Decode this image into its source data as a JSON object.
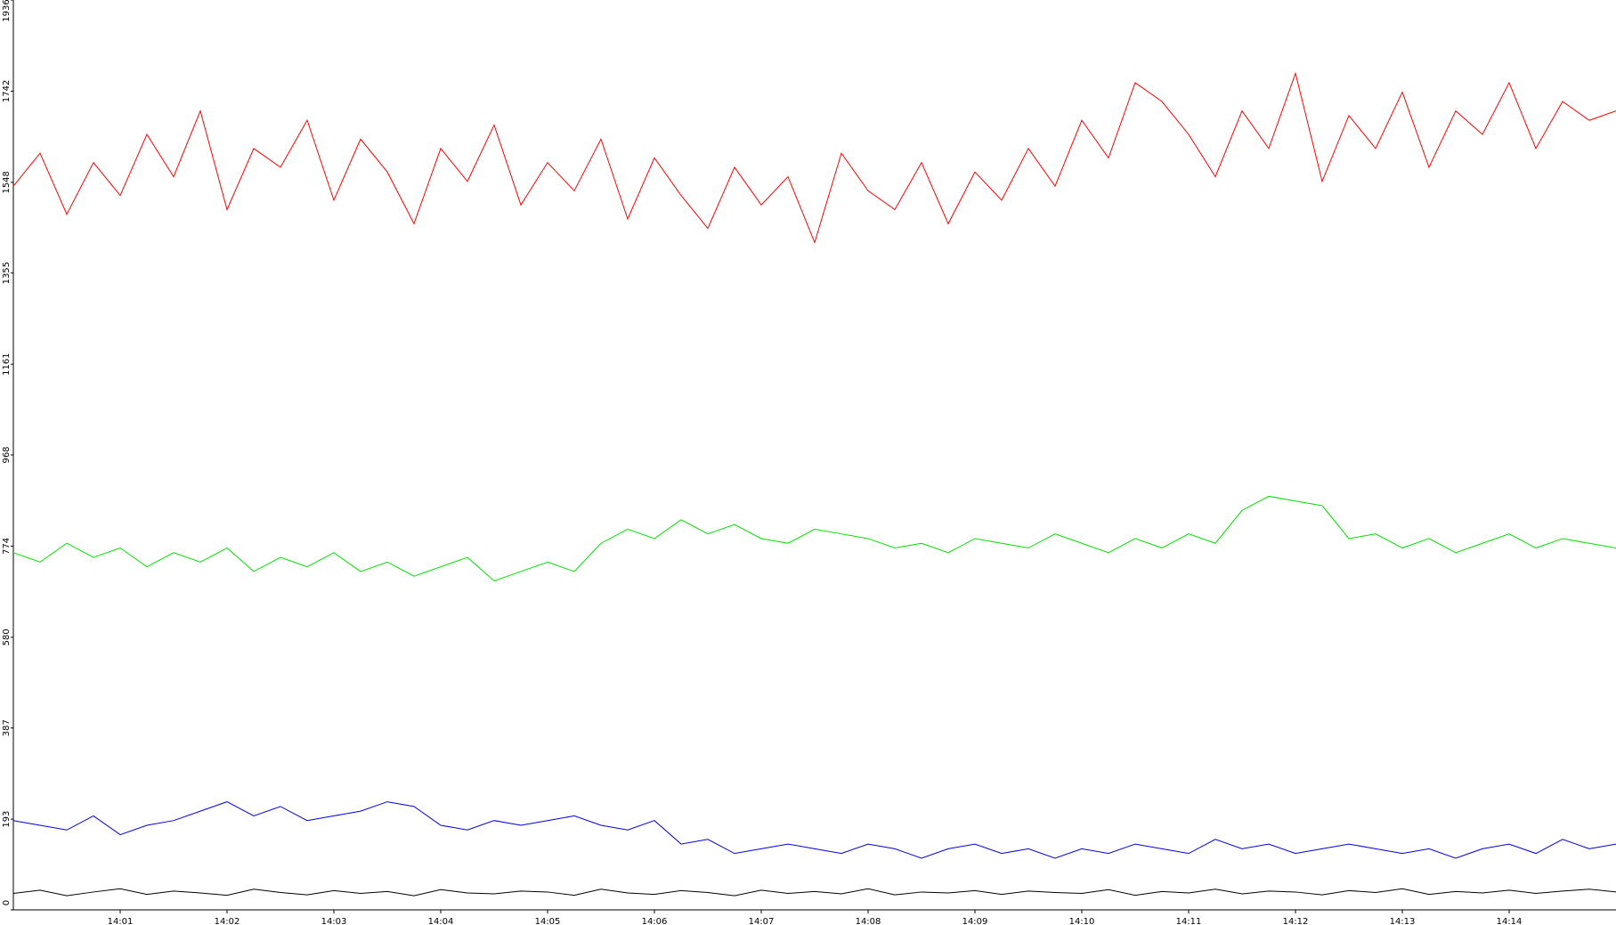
{
  "chart_data": {
    "type": "line",
    "x": [
      840,
      840.25,
      840.5,
      840.75,
      841,
      841.25,
      841.5,
      841.75,
      842,
      842.25,
      842.5,
      842.75,
      843,
      843.25,
      843.5,
      843.75,
      844,
      844.25,
      844.5,
      844.75,
      845,
      845.25,
      845.5,
      845.75,
      846,
      846.25,
      846.5,
      846.75,
      847,
      847.25,
      847.5,
      847.75,
      848,
      848.25,
      848.5,
      848.75,
      849,
      849.25,
      849.5,
      849.75,
      850,
      850.25,
      850.5,
      850.75,
      851,
      851.25,
      851.5,
      851.75,
      852,
      852.25,
      852.5,
      852.75,
      853,
      853.25,
      853.5,
      853.75,
      854,
      854.25,
      854.5,
      854.75,
      855
    ],
    "series": [
      {
        "color": "#ff0000",
        "values": [
          1540,
          1610,
          1480,
          1590,
          1520,
          1650,
          1560,
          1700,
          1490,
          1620,
          1580,
          1680,
          1510,
          1640,
          1570,
          1460,
          1620,
          1550,
          1670,
          1500,
          1590,
          1530,
          1640,
          1470,
          1600,
          1520,
          1450,
          1580,
          1500,
          1560,
          1420,
          1610,
          1530,
          1490,
          1590,
          1460,
          1570,
          1510,
          1620,
          1540,
          1680,
          1600,
          1760,
          1720,
          1650,
          1560,
          1700,
          1620,
          1780,
          1550,
          1690,
          1620,
          1740,
          1580,
          1700,
          1650,
          1760,
          1620,
          1720,
          1680,
          1700
        ]
      },
      {
        "color": "#00e000",
        "values": [
          760,
          740,
          780,
          750,
          770,
          730,
          760,
          740,
          770,
          720,
          750,
          730,
          760,
          720,
          740,
          710,
          730,
          750,
          700,
          720,
          740,
          720,
          780,
          810,
          790,
          830,
          800,
          820,
          790,
          780,
          810,
          800,
          790,
          770,
          780,
          760,
          790,
          780,
          770,
          800,
          780,
          760,
          790,
          770,
          800,
          780,
          850,
          880,
          870,
          860,
          790,
          800,
          770,
          790,
          760,
          780,
          800,
          770,
          790,
          780,
          770
        ]
      },
      {
        "color": "#0000dd",
        "values": [
          190,
          180,
          170,
          200,
          160,
          180,
          190,
          210,
          230,
          200,
          220,
          190,
          200,
          210,
          230,
          220,
          180,
          170,
          190,
          180,
          190,
          200,
          180,
          170,
          190,
          140,
          150,
          120,
          130,
          140,
          130,
          120,
          140,
          130,
          110,
          130,
          140,
          120,
          130,
          110,
          130,
          120,
          140,
          130,
          120,
          150,
          130,
          140,
          120,
          130,
          140,
          130,
          120,
          130,
          110,
          130,
          140,
          120,
          150,
          130,
          140
        ]
      },
      {
        "color": "#000000",
        "values": [
          35,
          42,
          30,
          38,
          45,
          33,
          40,
          36,
          31,
          44,
          37,
          32,
          41,
          35,
          39,
          30,
          43,
          36,
          34,
          40,
          38,
          31,
          44,
          36,
          33,
          41,
          37,
          30,
          42,
          35,
          39,
          34,
          45,
          32,
          38,
          36,
          41,
          33,
          40,
          37,
          35,
          43,
          31,
          39,
          36,
          44,
          34,
          40,
          38,
          32,
          41,
          37,
          45,
          33,
          39,
          36,
          42,
          35,
          40,
          44,
          38
        ]
      }
    ],
    "xlim": [
      840,
      855
    ],
    "xticks": [
      {
        "value": 841,
        "label": "14:01"
      },
      {
        "value": 842,
        "label": "14:02"
      },
      {
        "value": 843,
        "label": "14:03"
      },
      {
        "value": 844,
        "label": "14:04"
      },
      {
        "value": 845,
        "label": "14:05"
      },
      {
        "value": 846,
        "label": "14:06"
      },
      {
        "value": 847,
        "label": "14:07"
      },
      {
        "value": 848,
        "label": "14:08"
      },
      {
        "value": 849,
        "label": "14:09"
      },
      {
        "value": 850,
        "label": "14:10"
      },
      {
        "value": 851,
        "label": "14:11"
      },
      {
        "value": 852,
        "label": "14:12"
      },
      {
        "value": 853,
        "label": "14:13"
      },
      {
        "value": 854,
        "label": "14:14"
      }
    ],
    "ylim": [
      0,
      1936
    ],
    "yticks": [
      0,
      193,
      387,
      580,
      774,
      968,
      1161,
      1355,
      1548,
      1742,
      1936
    ]
  }
}
